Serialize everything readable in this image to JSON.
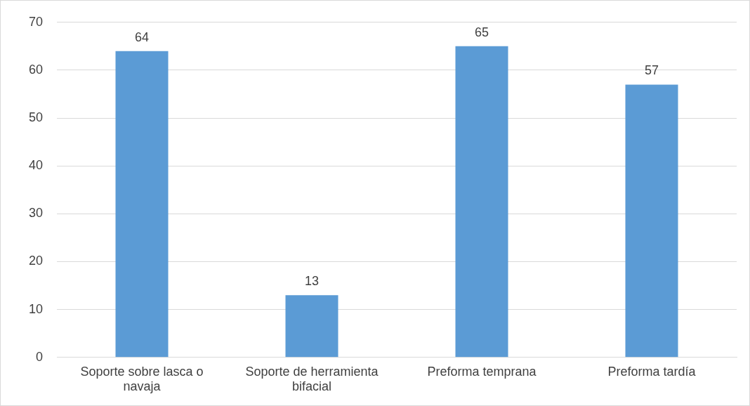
{
  "chart_data": {
    "type": "bar",
    "categories": [
      "Soporte sobre lasca o navaja",
      "Soporte de herramienta bifacial",
      "Preforma temprana",
      "Preforma tardía"
    ],
    "values": [
      64,
      13,
      65,
      57
    ],
    "color": "#5b9bd5",
    "ylim": [
      0,
      70
    ],
    "yticks": [
      0,
      10,
      20,
      30,
      40,
      50,
      60,
      70
    ],
    "grid": "y",
    "data_labels": true
  }
}
